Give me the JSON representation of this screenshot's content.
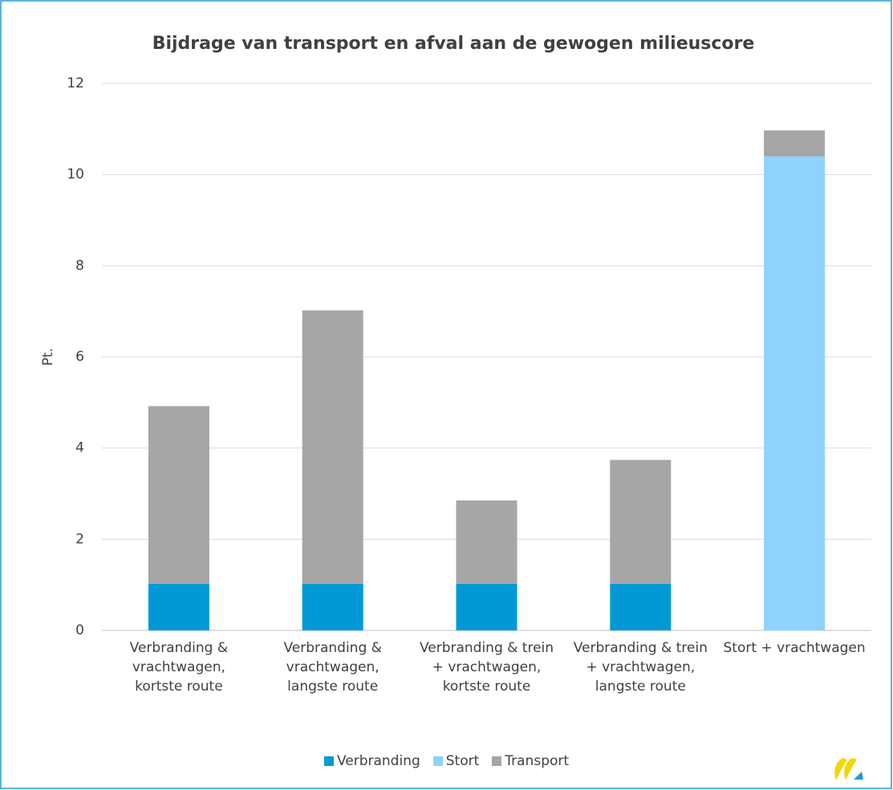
{
  "chart_data": {
    "type": "stacked_bar",
    "title": "Bijdrage van transport en afval aan de gewogen milieuscore",
    "y_label": "Pt.",
    "categories": [
      "Verbranding & vrachtwagen, kortste route",
      "Verbranding & vrachtwagen, langste route",
      "Verbranding & trein + vrachtwagen, kortste route",
      "Verbranding & trein + vrachtwagen, langste route",
      "Stort + vrachtwagen"
    ],
    "series": [
      {
        "name": "Verbranding",
        "color": "#0099d6",
        "values": [
          1.02,
          1.02,
          1.02,
          1.02,
          0
        ]
      },
      {
        "name": "Stort",
        "color": "#8dd3fc",
        "values": [
          0,
          0,
          0,
          0,
          10.4
        ]
      },
      {
        "name": "Transport",
        "color": "#a6a6a6",
        "values": [
          3.9,
          6.0,
          1.83,
          2.72,
          0.57
        ]
      }
    ],
    "ylim": [
      0,
      12
    ],
    "yticks": [
      0,
      2,
      4,
      6,
      8,
      10,
      12
    ],
    "grid": true,
    "legend": "bottom"
  }
}
